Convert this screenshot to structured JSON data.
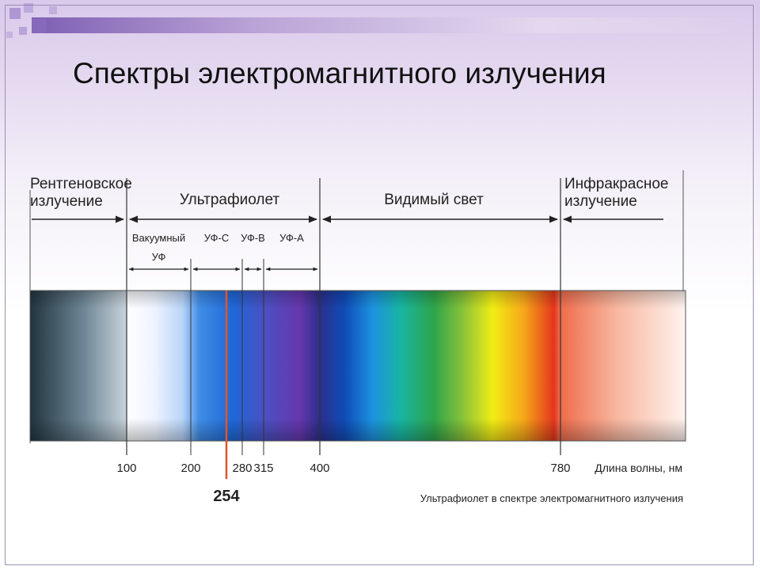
{
  "slide": {
    "title": "Спектры электромагнитного излучения"
  },
  "diagram": {
    "bands": [
      {
        "name": "xray",
        "label_lines": [
          "Рентгеновское",
          "излучение"
        ]
      },
      {
        "name": "uv",
        "label_lines": [
          "Ультрафиолет"
        ]
      },
      {
        "name": "visible",
        "label_lines": [
          "Видимый свет"
        ]
      },
      {
        "name": "infrared",
        "label_lines": [
          "Инфракрасное",
          "излучение"
        ]
      }
    ],
    "uv_subranges": [
      {
        "name": "vacuum-uv",
        "label_lines": [
          "Вакуумный",
          "УФ"
        ],
        "from": 100,
        "to": 200
      },
      {
        "name": "uvc",
        "label_lines": [
          "УФ-С"
        ],
        "from": 200,
        "to": 280
      },
      {
        "name": "uvb",
        "label_lines": [
          "УФ-В"
        ],
        "from": 280,
        "to": 315
      },
      {
        "name": "uva",
        "label_lines": [
          "УФ-А"
        ],
        "from": 315,
        "to": 400
      }
    ],
    "ticks": [
      {
        "value": 100,
        "label": "100"
      },
      {
        "value": 200,
        "label": "200"
      },
      {
        "value": 280,
        "label": "280"
      },
      {
        "value": 315,
        "label": "315"
      },
      {
        "value": 400,
        "label": "400"
      },
      {
        "value": 780,
        "label": "780"
      }
    ],
    "highlight": {
      "value": 254,
      "label": "254",
      "color": "#e0552b"
    },
    "axis_label": "Длина волны, нм",
    "caption": "Ультрафиолет в спектре электромагнитного излучения"
  }
}
